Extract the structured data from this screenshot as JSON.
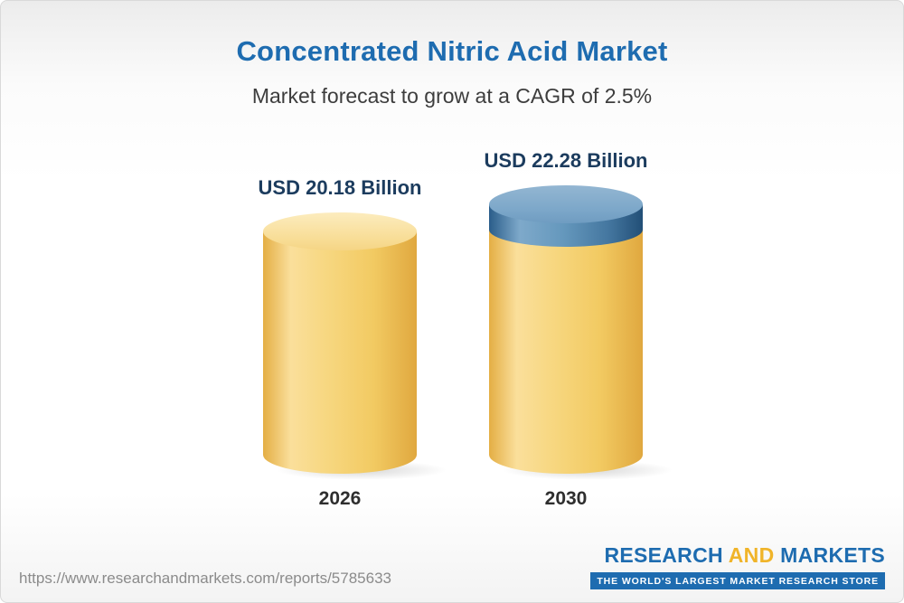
{
  "header": {
    "title": "Concentrated Nitric Acid Market",
    "subtitle": "Market forecast to grow at a CAGR of 2.5%"
  },
  "chart_data": {
    "type": "bar",
    "title": "Concentrated Nitric Acid Market",
    "subtitle": "Market forecast to grow at a CAGR of 2.5%",
    "categories": [
      "2026",
      "2030"
    ],
    "values": [
      20.18,
      22.28
    ],
    "value_labels": [
      "USD 20.18 Billion",
      "USD 22.28 Billion"
    ],
    "unit": "USD Billion",
    "cagr_percent": 2.5,
    "ylim": [
      0,
      24
    ],
    "grid": false,
    "legend": false,
    "bar_style": "3d-cylinder",
    "bar_color": "#f3cd6e",
    "cap_color": "#4f82ab",
    "label_color": "#1c3c5e",
    "title_color": "#1e6cb0"
  },
  "footer": {
    "url": "https://www.researchandmarkets.com/reports/5785633",
    "logo": {
      "research": "RESEARCH ",
      "and": "AND",
      "markets": " MARKETS",
      "tagline": "THE WORLD'S LARGEST MARKET RESEARCH STORE"
    }
  }
}
